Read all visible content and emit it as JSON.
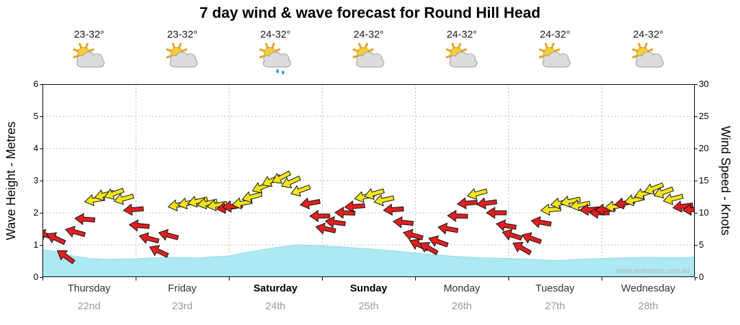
{
  "title": "7 day wind & wave forecast for Round Hill Head",
  "watermark": "www.seabreeze.com.au",
  "days": [
    {
      "name": "Thursday",
      "date": "22nd",
      "temp": "23-32°",
      "icon": "sun-cloud",
      "weekend": false
    },
    {
      "name": "Friday",
      "date": "23rd",
      "temp": "23-32°",
      "icon": "sun-cloud",
      "weekend": false
    },
    {
      "name": "Saturday",
      "date": "24th",
      "temp": "24-32°",
      "icon": "sun-cloud-rain",
      "weekend": true
    },
    {
      "name": "Sunday",
      "date": "25th",
      "temp": "24-32°",
      "icon": "sun-cloud",
      "weekend": true
    },
    {
      "name": "Monday",
      "date": "26th",
      "temp": "24-32°",
      "icon": "sun-cloud",
      "weekend": false
    },
    {
      "name": "Tuesday",
      "date": "27th",
      "temp": "24-32°",
      "icon": "sun-cloud",
      "weekend": false
    },
    {
      "name": "Wednesday",
      "date": "28th",
      "temp": "24-32°",
      "icon": "sun-cloud",
      "weekend": false
    }
  ],
  "chart_data": {
    "type": "mixed",
    "subtypes": {
      "wave_height_m": "area",
      "wind_arrows": "directional-arrows"
    },
    "title": "7 day wind & wave forecast for Round Hill Head",
    "x_axis": {
      "unit": "hours",
      "range": [
        0,
        168
      ],
      "days_shown": 7,
      "grid": "dotted day boundaries"
    },
    "left_axis": {
      "label": "Wave Height - Metres",
      "min": 0,
      "max": 6,
      "ticks": [
        0,
        1,
        2,
        3,
        4,
        5,
        6
      ]
    },
    "right_axis": {
      "label": "Wind Speed - Knots",
      "min": 0,
      "max": 30,
      "ticks": [
        0,
        5,
        10,
        15,
        20,
        25,
        30
      ]
    },
    "wave_height_m": {
      "color": "#ade9f2",
      "edge_color": "#8fd9e6",
      "points": [
        [
          0,
          0.85
        ],
        [
          4,
          0.78
        ],
        [
          8,
          0.65
        ],
        [
          12,
          0.58
        ],
        [
          16,
          0.55
        ],
        [
          24,
          0.57
        ],
        [
          32,
          0.62
        ],
        [
          40,
          0.6
        ],
        [
          48,
          0.66
        ],
        [
          54,
          0.8
        ],
        [
          60,
          0.92
        ],
        [
          66,
          1.0
        ],
        [
          72,
          0.97
        ],
        [
          78,
          0.93
        ],
        [
          84,
          0.88
        ],
        [
          90,
          0.82
        ],
        [
          96,
          0.75
        ],
        [
          102,
          0.68
        ],
        [
          108,
          0.63
        ],
        [
          114,
          0.6
        ],
        [
          120,
          0.58
        ],
        [
          126,
          0.55
        ],
        [
          132,
          0.52
        ],
        [
          138,
          0.55
        ],
        [
          144,
          0.58
        ],
        [
          150,
          0.6
        ],
        [
          156,
          0.62
        ],
        [
          162,
          0.6
        ],
        [
          168,
          0.62
        ]
      ]
    },
    "wind_arrows": {
      "colors": {
        "R": "#e02020",
        "Y": "#f2e41c"
      },
      "point_format": [
        "hour",
        "knots",
        "color",
        "direction_deg"
      ],
      "points": [
        [
          1,
          6.5,
          "R",
          195
        ],
        [
          3.5,
          6,
          "R",
          205
        ],
        [
          6,
          3.2,
          "R",
          215
        ],
        [
          8.5,
          7,
          "R",
          195
        ],
        [
          11,
          9,
          "R",
          185
        ],
        [
          13.5,
          12,
          "Y",
          170
        ],
        [
          16,
          12.8,
          "Y",
          165
        ],
        [
          18.5,
          13,
          "Y",
          160
        ],
        [
          21,
          12.2,
          "Y",
          165
        ],
        [
          23.5,
          10.5,
          "R",
          175
        ],
        [
          25,
          8,
          "R",
          185
        ],
        [
          27.5,
          6,
          "R",
          195
        ],
        [
          30,
          4,
          "R",
          205
        ],
        [
          32.5,
          6.5,
          "R",
          195
        ],
        [
          35,
          11.2,
          "Y",
          170
        ],
        [
          37.5,
          11.5,
          "Y",
          168
        ],
        [
          40,
          11.8,
          "Y",
          166
        ],
        [
          42.5,
          11.5,
          "Y",
          168
        ],
        [
          45,
          11.2,
          "Y",
          170
        ],
        [
          47.5,
          10.8,
          "R",
          172
        ],
        [
          49,
          11,
          "R",
          175
        ],
        [
          51.5,
          11.5,
          "Y",
          170
        ],
        [
          54,
          12.5,
          "Y",
          165
        ],
        [
          56.5,
          14,
          "Y",
          158
        ],
        [
          59,
          15,
          "Y",
          155
        ],
        [
          61.5,
          15.5,
          "Y",
          152
        ],
        [
          64,
          14.8,
          "Y",
          155
        ],
        [
          66.5,
          13.5,
          "Y",
          160
        ],
        [
          69,
          11.5,
          "R",
          170
        ],
        [
          71.5,
          9.5,
          "R",
          180
        ],
        [
          73,
          7.5,
          "R",
          192
        ],
        [
          75.5,
          8.5,
          "R",
          188
        ],
        [
          78,
          10,
          "R",
          182
        ],
        [
          80.5,
          11,
          "R",
          176
        ],
        [
          83,
          12.5,
          "Y",
          168
        ],
        [
          85.5,
          13,
          "Y",
          164
        ],
        [
          88,
          12,
          "Y",
          168
        ],
        [
          90.5,
          10.5,
          "R",
          176
        ],
        [
          93,
          8.5,
          "R",
          186
        ],
        [
          95.5,
          6.5,
          "R",
          196
        ],
        [
          97,
          5,
          "R",
          205
        ],
        [
          99.5,
          4.5,
          "R",
          210
        ],
        [
          102,
          5.5,
          "R",
          200
        ],
        [
          104.5,
          7.5,
          "R",
          190
        ],
        [
          107,
          9.5,
          "R",
          182
        ],
        [
          109.5,
          11.5,
          "R",
          175
        ],
        [
          112,
          13,
          "Y",
          165
        ],
        [
          114.5,
          11.5,
          "R",
          172
        ],
        [
          117,
          10,
          "R",
          180
        ],
        [
          119.5,
          8,
          "R",
          190
        ],
        [
          121,
          6.5,
          "R",
          198
        ],
        [
          123.5,
          4.5,
          "R",
          210
        ],
        [
          126,
          6,
          "R",
          200
        ],
        [
          128.5,
          8.5,
          "R",
          190
        ],
        [
          131,
          10.5,
          "Y",
          175
        ],
        [
          133.5,
          11.5,
          "Y",
          170
        ],
        [
          136,
          11.8,
          "Y",
          168
        ],
        [
          138.5,
          11.2,
          "Y",
          170
        ],
        [
          141,
          10.5,
          "R",
          176
        ],
        [
          143.5,
          10,
          "R",
          180
        ],
        [
          145,
          10.5,
          "R",
          176
        ],
        [
          147.5,
          11,
          "Y",
          172
        ],
        [
          150,
          11.5,
          "R",
          170
        ],
        [
          152.5,
          12,
          "Y",
          167
        ],
        [
          155,
          13,
          "Y",
          162
        ],
        [
          157.5,
          13.8,
          "Y",
          158
        ],
        [
          160,
          13.2,
          "Y",
          160
        ],
        [
          162.5,
          12.2,
          "Y",
          166
        ],
        [
          165,
          11,
          "R",
          172
        ],
        [
          167.5,
          10.5,
          "R",
          176
        ]
      ]
    }
  }
}
